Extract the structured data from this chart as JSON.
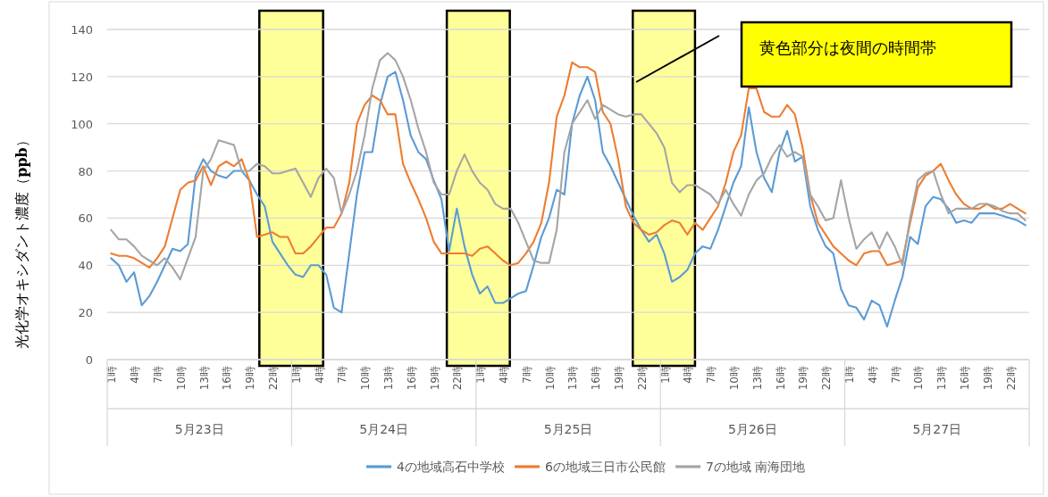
{
  "chart_data": {
    "type": "line",
    "ylabel": "光化学オキシダント濃度（**ppb**）",
    "categories": [
      "1時",
      null,
      null,
      "4時",
      null,
      null,
      "7時",
      null,
      null,
      "10時",
      null,
      null,
      "13時",
      null,
      null,
      "16時",
      null,
      null,
      "19時",
      null,
      null,
      "22時",
      null,
      null,
      "1時",
      null,
      null,
      "4時",
      null,
      null,
      "7時",
      null,
      null,
      "10時",
      null,
      null,
      "13時",
      null,
      null,
      "16時",
      null,
      null,
      "19時",
      null,
      null,
      "22時",
      null,
      null,
      "1時",
      null,
      null,
      "4時",
      null,
      null,
      "7時",
      null,
      null,
      "10時",
      null,
      null,
      "13時",
      null,
      null,
      "16時",
      null,
      null,
      "19時",
      null,
      null,
      "22時",
      null,
      null,
      "1時",
      null,
      null,
      "4時",
      null,
      null,
      "7時",
      null,
      null,
      "10時",
      null,
      null,
      "13時",
      null,
      null,
      "16時",
      null,
      null,
      "19時",
      null,
      null,
      "22時",
      null,
      null,
      "1時",
      null,
      null,
      "4時",
      null,
      null,
      "7時",
      null,
      null,
      "10時",
      null,
      null,
      "13時",
      null,
      null,
      "16時",
      null,
      null,
      "19時",
      null,
      null,
      "22時",
      null,
      null
    ],
    "series": [
      {
        "name": "4の地域高石中学校",
        "color": "#5b9bd5",
        "values": [
          43,
          40,
          33,
          37,
          23,
          27,
          33,
          40,
          47,
          46,
          49,
          78,
          85,
          80,
          78,
          77,
          80,
          80,
          76,
          70,
          65,
          50,
          45,
          40,
          36,
          35,
          40,
          40,
          36,
          22,
          20,
          45,
          70,
          88,
          88,
          108,
          120,
          122,
          110,
          95,
          88,
          85,
          76,
          68,
          46,
          64,
          48,
          36,
          28,
          31,
          24,
          24,
          26,
          28,
          29,
          40,
          52,
          60,
          72,
          70,
          100,
          112,
          120,
          110,
          88,
          82,
          75,
          68,
          61,
          55,
          50,
          53,
          45,
          33,
          35,
          38,
          45,
          48,
          47,
          55,
          65,
          75,
          82,
          107,
          88,
          77,
          71,
          88,
          97,
          84,
          86,
          65,
          55,
          48,
          45,
          30,
          23,
          22,
          17,
          25,
          23,
          14,
          25,
          35,
          52,
          49,
          65,
          69,
          68,
          64,
          58,
          59,
          58,
          62,
          62,
          62,
          61,
          60,
          59,
          57
        ]
      },
      {
        "name": "6の地域三日市公民館",
        "color": "#ed7d31",
        "values": [
          45,
          44,
          44,
          43,
          41,
          39,
          43,
          48,
          60,
          72,
          75,
          76,
          82,
          74,
          82,
          84,
          82,
          85,
          76,
          52,
          53,
          54,
          52,
          52,
          45,
          45,
          48,
          52,
          56,
          56,
          62,
          75,
          100,
          108,
          112,
          110,
          104,
          104,
          83,
          75,
          68,
          60,
          50,
          45,
          45,
          45,
          45,
          44,
          47,
          48,
          45,
          42,
          40,
          41,
          45,
          50,
          58,
          75,
          103,
          112,
          126,
          124,
          124,
          122,
          105,
          100,
          85,
          65,
          58,
          55,
          53,
          54,
          57,
          59,
          58,
          53,
          58,
          55,
          60,
          65,
          75,
          88,
          95,
          115,
          115,
          105,
          103,
          103,
          108,
          104,
          90,
          70,
          58,
          53,
          48,
          45,
          42,
          40,
          45,
          46,
          46,
          40,
          41,
          42,
          58,
          73,
          78,
          80,
          83,
          76,
          70,
          66,
          64,
          64,
          66,
          64,
          64,
          66,
          64,
          62
        ]
      },
      {
        "name": "7の地域 南海団地",
        "color": "#a5a5a5",
        "values": [
          55,
          51,
          51,
          48,
          44,
          42,
          40,
          43,
          39,
          34,
          43,
          52,
          80,
          85,
          93,
          92,
          91,
          80,
          80,
          83,
          82,
          79,
          79,
          80,
          81,
          75,
          69,
          77,
          81,
          77,
          62,
          70,
          80,
          95,
          115,
          127,
          130,
          127,
          120,
          110,
          98,
          88,
          75,
          70,
          70,
          80,
          87,
          80,
          75,
          72,
          66,
          64,
          64,
          58,
          50,
          42,
          41,
          41,
          55,
          88,
          100,
          105,
          110,
          102,
          108,
          106,
          104,
          103,
          104,
          104,
          100,
          96,
          90,
          75,
          71,
          74,
          74,
          72,
          70,
          66,
          72,
          66,
          61,
          70,
          76,
          79,
          86,
          91,
          86,
          88,
          86,
          70,
          65,
          59,
          60,
          76,
          60,
          47,
          51,
          54,
          47,
          54,
          48,
          40,
          60,
          76,
          79,
          80,
          70,
          62,
          64,
          64,
          64,
          66,
          66,
          65,
          63,
          62,
          62,
          59
        ]
      }
    ],
    "ylim": [
      0,
      140
    ],
    "yticks": [
      0,
      20,
      40,
      60,
      80,
      100,
      120,
      140
    ],
    "grid": "y",
    "legend": "bottom",
    "marker": "none",
    "line_style": "solid",
    "annotations": [
      "5月23日",
      "5月24日",
      "5月25日",
      "5月26日",
      "5月27日",
      "黄色部分は夜間の時間帯"
    ]
  }
}
